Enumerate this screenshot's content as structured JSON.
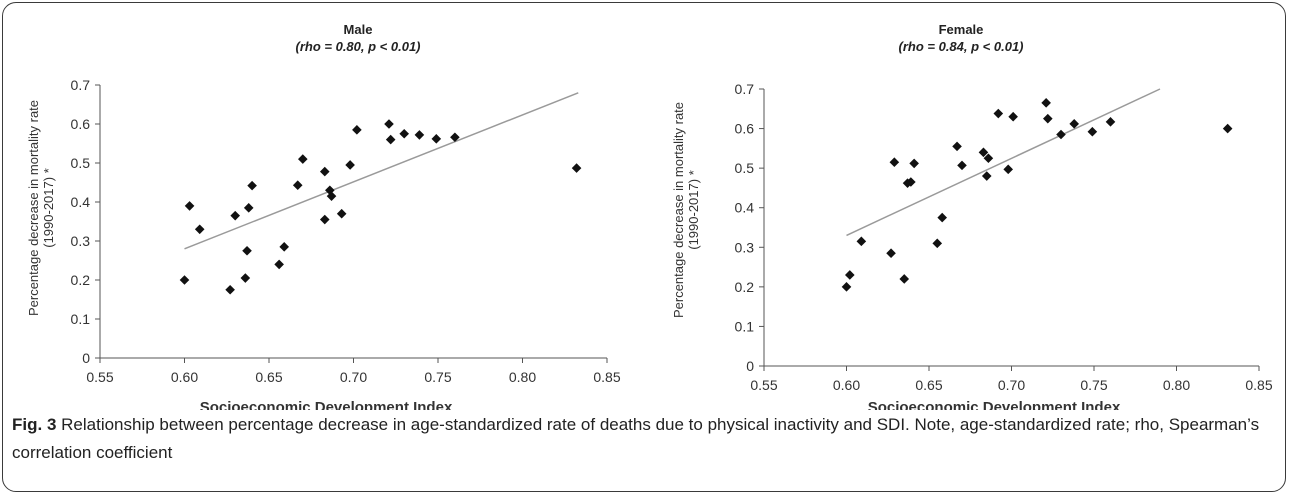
{
  "figure": {
    "caption_label": "Fig. 3",
    "caption_text": " Relationship between percentage decrease in age-standardized rate of deaths due to physical inactivity and SDI. Note, age-standardized rate; rho, Spearman’s correlation coefficient"
  },
  "chart_data": [
    {
      "type": "scatter",
      "title": "Male",
      "subtitle": "(rho = 0.80, p < 0.01)",
      "xlabel": "Socioeconomic Development Index",
      "ylabel": "Percentage decrease in mortality rate",
      "ylabel2": "(1990-2017) *",
      "xlim": [
        0.55,
        0.85
      ],
      "ylim": [
        0,
        0.7
      ],
      "xticks": [
        "0.55",
        "0.60",
        "0.65",
        "0.70",
        "0.75",
        "0.80",
        "0.85"
      ],
      "yticks": [
        "0",
        "0.1",
        "0.2",
        "0.3",
        "0.4",
        "0.5",
        "0.6",
        "0.7"
      ],
      "points": [
        [
          0.6,
          0.2
        ],
        [
          0.603,
          0.39
        ],
        [
          0.609,
          0.33
        ],
        [
          0.627,
          0.175
        ],
        [
          0.63,
          0.365
        ],
        [
          0.636,
          0.205
        ],
        [
          0.637,
          0.275
        ],
        [
          0.638,
          0.385
        ],
        [
          0.64,
          0.442
        ],
        [
          0.656,
          0.24
        ],
        [
          0.659,
          0.285
        ],
        [
          0.667,
          0.443
        ],
        [
          0.67,
          0.51
        ],
        [
          0.683,
          0.355
        ],
        [
          0.683,
          0.478
        ],
        [
          0.686,
          0.43
        ],
        [
          0.687,
          0.415
        ],
        [
          0.693,
          0.37
        ],
        [
          0.698,
          0.495
        ],
        [
          0.702,
          0.585
        ],
        [
          0.721,
          0.6
        ],
        [
          0.722,
          0.56
        ],
        [
          0.73,
          0.575
        ],
        [
          0.739,
          0.572
        ],
        [
          0.749,
          0.562
        ],
        [
          0.76,
          0.566
        ],
        [
          0.832,
          0.487
        ]
      ],
      "trendline": [
        [
          0.6,
          0.28
        ],
        [
          0.833,
          0.68
        ]
      ],
      "grid": false,
      "legend": "none",
      "marker_color": "#111111",
      "trend_color": "#9a9a9a"
    },
    {
      "type": "scatter",
      "title": "Female",
      "subtitle": "(rho = 0.84, p < 0.01)",
      "xlabel": "Socioeconomic Development Index",
      "ylabel": "Percentage decrease in mortality rate",
      "ylabel2": "(1990-2017) *",
      "xlim": [
        0.55,
        0.85
      ],
      "ylim": [
        0,
        0.7
      ],
      "xticks": [
        "0.55",
        "0.60",
        "0.65",
        "0.70",
        "0.75",
        "0.80",
        "0.85"
      ],
      "yticks": [
        "0",
        "0.1",
        "0.2",
        "0.3",
        "0.4",
        "0.5",
        "0.6",
        "0.7"
      ],
      "points": [
        [
          0.6,
          0.2
        ],
        [
          0.602,
          0.23
        ],
        [
          0.609,
          0.315
        ],
        [
          0.627,
          0.285
        ],
        [
          0.629,
          0.515
        ],
        [
          0.635,
          0.22
        ],
        [
          0.637,
          0.462
        ],
        [
          0.639,
          0.465
        ],
        [
          0.641,
          0.512
        ],
        [
          0.655,
          0.31
        ],
        [
          0.658,
          0.375
        ],
        [
          0.667,
          0.555
        ],
        [
          0.67,
          0.507
        ],
        [
          0.683,
          0.54
        ],
        [
          0.685,
          0.48
        ],
        [
          0.686,
          0.525
        ],
        [
          0.692,
          0.638
        ],
        [
          0.698,
          0.497
        ],
        [
          0.701,
          0.63
        ],
        [
          0.721,
          0.665
        ],
        [
          0.722,
          0.625
        ],
        [
          0.73,
          0.585
        ],
        [
          0.738,
          0.612
        ],
        [
          0.749,
          0.592
        ],
        [
          0.76,
          0.617
        ],
        [
          0.831,
          0.6
        ]
      ],
      "trendline": [
        [
          0.6,
          0.33
        ],
        [
          0.79,
          0.7
        ]
      ],
      "grid": false,
      "legend": "none",
      "marker_color": "#111111",
      "trend_color": "#9a9a9a"
    }
  ]
}
